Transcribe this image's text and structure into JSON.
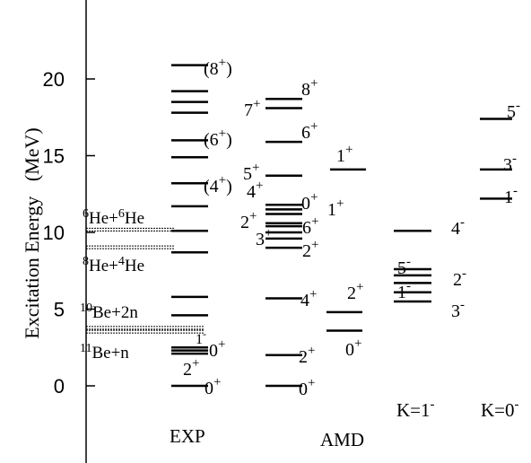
{
  "chart_data": {
    "type": "level_scheme",
    "ylabel": "Excitation Energy",
    "yunit": "(MeV)",
    "ylim": [
      -2.5,
      24
    ],
    "yticks": [
      "0",
      "5",
      "10",
      "15",
      "20"
    ],
    "columns": [
      {
        "label": "EXP",
        "levels": [
          0,
          2.1,
          2.3,
          2.5,
          4.6,
          5.8,
          8.7,
          10.1,
          11.7,
          13.2,
          14.9,
          16.0,
          17.8,
          18.5,
          19.2,
          20.9
        ],
        "annotations": [
          {
            "energy": 0.0,
            "text": "0",
            "sup": "+"
          },
          {
            "energy": 0.95,
            "text": "2",
            "sup": "+"
          },
          {
            "energy": 2.0,
            "text": "0",
            "sup": "+"
          },
          {
            "energy": 13.1,
            "text": "(4",
            "sup": "+",
            "after": ")"
          },
          {
            "energy": 16.1,
            "text": "(6",
            "sup": "+",
            "after": ")"
          },
          {
            "energy": 20.8,
            "text": "(8",
            "sup": "+",
            "after": ")"
          }
        ]
      },
      {
        "label": "AMD",
        "levels": [
          0,
          2.0,
          3.6,
          4.8,
          5.7,
          9.0,
          9.6,
          10.0,
          10.4,
          10.6,
          11.2,
          11.5,
          11.8,
          13.7,
          15.9,
          18.1,
          18.7
        ],
        "annotations": [
          {
            "energy": -0.2,
            "text": "0",
            "sup": "+"
          },
          {
            "energy": 1.8,
            "text": "2",
            "sup": "+"
          },
          {
            "energy": 2.6,
            "text": "0",
            "sup": "+"
          },
          {
            "energy": 5.6,
            "text": "2",
            "sup": "+"
          },
          {
            "energy": 5.4,
            "text": "4",
            "sup": "+"
          },
          {
            "energy": 9.2,
            "text": "3",
            "sup": "+"
          },
          {
            "energy": 9.0,
            "text": "2",
            "sup": "+"
          },
          {
            "energy": 10.2,
            "text": "6",
            "sup": "+"
          },
          {
            "energy": 10.6,
            "text": "2",
            "sup": "+"
          },
          {
            "energy": 11.1,
            "text": "1",
            "sup": "+"
          },
          {
            "energy": 11.8,
            "text": "0",
            "sup": "+"
          },
          {
            "energy": 12.3,
            "text": "4",
            "sup": "+"
          },
          {
            "energy": 13.6,
            "text": "5",
            "sup": "+"
          },
          {
            "energy": 14.3,
            "text": "1",
            "sup": "+"
          },
          {
            "energy": 16.3,
            "text": "6",
            "sup": "+"
          },
          {
            "energy": 17.7,
            "text": "7",
            "sup": "+"
          },
          {
            "energy": 18.7,
            "text": "8",
            "sup": "+"
          }
        ]
      },
      {
        "label": "K=1",
        "label_sup": "-",
        "levels": [
          5.5,
          6.1,
          6.7,
          7.2,
          7.6,
          10.1
        ],
        "annotations": [
          {
            "energy": 4.9,
            "text": "3",
            "sup": "-"
          },
          {
            "energy": 6.1,
            "text": "1",
            "sup": "-"
          },
          {
            "energy": 6.7,
            "text": "2",
            "sup": "-"
          },
          {
            "energy": 7.5,
            "text": "5",
            "sup": "-"
          },
          {
            "energy": 10.0,
            "text": "4",
            "sup": "-"
          }
        ]
      },
      {
        "label": "K=0",
        "label_sup": "-",
        "levels": [
          12.2,
          14.1,
          17.4
        ],
        "annotations": [
          {
            "energy": 12.3,
            "text": "1",
            "sup": "-"
          },
          {
            "energy": 14.0,
            "text": "3",
            "sup": "-"
          },
          {
            "energy": 17.7,
            "text": "5",
            "sup": "-"
          }
        ]
      }
    ],
    "thresholds": [
      {
        "energy": 10.15,
        "parts": [
          {
            "t": "6",
            "sup": true
          },
          {
            "t": "He+"
          },
          {
            "t": "6",
            "sup": true
          },
          {
            "t": "He"
          }
        ]
      },
      {
        "energy": 9.0,
        "parts": [
          {
            "t": "8",
            "sup": true
          },
          {
            "t": "He+"
          },
          {
            "t": "4",
            "sup": true
          },
          {
            "t": "He"
          }
        ]
      },
      {
        "energy": 3.75,
        "parts": [
          {
            "t": "10",
            "sup": true
          },
          {
            "t": "Be+2n"
          }
        ]
      },
      {
        "energy": 3.5,
        "parts": [
          {
            "t": "11",
            "sup": true
          },
          {
            "t": "Be+n"
          }
        ]
      }
    ],
    "threshold_tick": "1",
    "threshold_tick_sup": "-",
    "grid": false
  }
}
